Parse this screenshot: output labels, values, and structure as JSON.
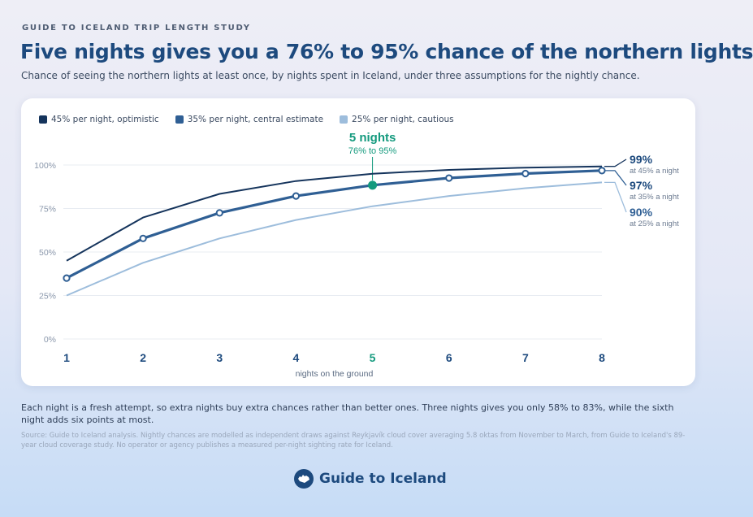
{
  "header": {
    "eyebrow": "GUIDE TO ICELAND TRIP LENGTH STUDY",
    "title": "Five nights gives you a 76% to 95% chance of the northern lights",
    "subtitle": "Chance of seeing the northern lights at least once, by nights spent in Iceland, under three assumptions for the nightly chance."
  },
  "chart_data": {
    "type": "line",
    "xlabel": "nights on the ground",
    "x": [
      1,
      2,
      3,
      4,
      5,
      6,
      7,
      8
    ],
    "yticks": [
      "0%",
      "25%",
      "50%",
      "75%",
      "100%"
    ],
    "ylim": [
      0,
      100
    ],
    "grid": true,
    "legend_position": "top-left",
    "series": [
      {
        "name": "45% per night, optimistic",
        "color": "#15345c",
        "values": [
          45,
          69.8,
          83.4,
          90.8,
          95.0,
          97.2,
          98.5,
          99.2
        ],
        "end_label": "99%",
        "end_sub": "at 45% a night"
      },
      {
        "name": "35% per night, central estimate",
        "color": "#2f5f94",
        "values": [
          35,
          57.8,
          72.5,
          82.2,
          88.4,
          92.5,
          95.1,
          96.8
        ],
        "end_label": "97%",
        "end_sub": "at 35% a night"
      },
      {
        "name": "25% per night, cautious",
        "color": "#9dbddc",
        "values": [
          25,
          43.8,
          57.8,
          68.4,
          76.3,
          82.2,
          86.7,
          90.0
        ],
        "end_label": "90%",
        "end_sub": "at 25% a night"
      }
    ],
    "annotation": {
      "x": 5,
      "y": 88.4,
      "title": "5 nights",
      "sub": "76% to 95%",
      "color": "#149a7e"
    }
  },
  "footer": {
    "note": "Each night is a fresh attempt, so extra nights buy extra chances rather than better ones. Three nights gives you only 58% to 83%, while the sixth night adds six points at most.",
    "source": "Source: Guide to Iceland analysis. Nightly chances are modelled as independent draws against Reykjavík cloud cover averaging 5.8 oktas from November to March, from Guide to Iceland's 89-year cloud coverage study. No operator or agency publishes a measured per-night sighting rate for Iceland.",
    "brand": "Guide to Iceland"
  }
}
